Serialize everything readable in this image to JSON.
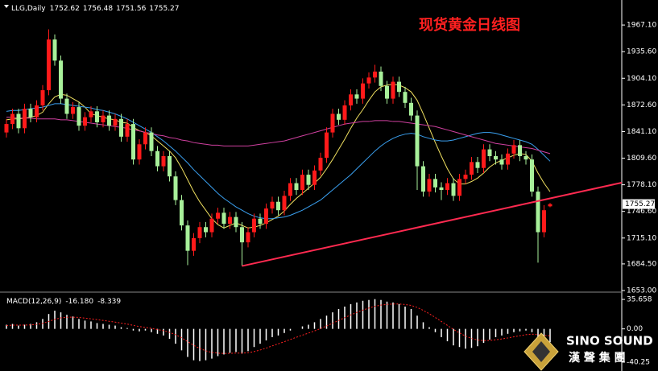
{
  "chart_data": [
    {
      "type": "candlestick",
      "title": "现货黄金日线图",
      "symbol": "LLG,Daily",
      "up_color": "#ff1a1a",
      "down_color": "#a8f09a",
      "open": [
        1840,
        1850,
        1862,
        1845,
        1868,
        1858,
        1872,
        1890,
        1950,
        1925,
        1880,
        1862,
        1870,
        1848,
        1858,
        1865,
        1852,
        1860,
        1848,
        1856,
        1835,
        1850,
        1808,
        1826,
        1840,
        1818,
        1800,
        1812,
        1788,
        1760,
        1730,
        1700,
        1715,
        1728,
        1722,
        1738,
        1745,
        1732,
        1740,
        1728,
        1710,
        1722,
        1738,
        1732,
        1750,
        1758,
        1748,
        1765,
        1780,
        1772,
        1790,
        1778,
        1795,
        1810,
        1840,
        1862,
        1855,
        1872,
        1885,
        1880,
        1898,
        1905,
        1912,
        1895,
        1880,
        1900,
        1888,
        1875,
        1860,
        1800,
        1770,
        1785,
        1775,
        1772,
        1780,
        1765,
        1785,
        1790,
        1805,
        1798,
        1820,
        1812,
        1808,
        1802,
        1815,
        1825,
        1812,
        1808,
        1770,
        1722,
        1752.62
      ],
      "high": [
        1856,
        1868,
        1868,
        1874,
        1874,
        1878,
        1896,
        1962,
        1956,
        1931,
        1886,
        1876,
        1876,
        1864,
        1871,
        1871,
        1866,
        1866,
        1862,
        1862,
        1856,
        1856,
        1832,
        1846,
        1846,
        1824,
        1818,
        1818,
        1794,
        1766,
        1736,
        1721,
        1734,
        1734,
        1744,
        1751,
        1751,
        1746,
        1746,
        1734,
        1728,
        1744,
        1744,
        1756,
        1764,
        1764,
        1771,
        1786,
        1786,
        1796,
        1796,
        1801,
        1816,
        1846,
        1868,
        1868,
        1878,
        1891,
        1891,
        1904,
        1911,
        1920,
        1918,
        1901,
        1906,
        1906,
        1894,
        1881,
        1866,
        1806,
        1791,
        1791,
        1781,
        1786,
        1786,
        1791,
        1796,
        1811,
        1811,
        1826,
        1826,
        1818,
        1814,
        1821,
        1831,
        1831,
        1818,
        1814,
        1776,
        1754,
        1756.48
      ],
      "low": [
        1834,
        1844,
        1839,
        1839,
        1852,
        1852,
        1866,
        1884,
        1919,
        1874,
        1856,
        1856,
        1842,
        1842,
        1852,
        1846,
        1846,
        1842,
        1842,
        1829,
        1829,
        1802,
        1802,
        1820,
        1812,
        1794,
        1794,
        1782,
        1754,
        1724,
        1683,
        1694,
        1709,
        1716,
        1716,
        1732,
        1726,
        1726,
        1722,
        1682,
        1704,
        1716,
        1726,
        1726,
        1744,
        1742,
        1742,
        1759,
        1766,
        1766,
        1772,
        1772,
        1789,
        1804,
        1834,
        1849,
        1849,
        1866,
        1874,
        1874,
        1892,
        1899,
        1889,
        1874,
        1874,
        1882,
        1869,
        1854,
        1772,
        1764,
        1764,
        1769,
        1760,
        1766,
        1759,
        1759,
        1779,
        1784,
        1792,
        1792,
        1806,
        1802,
        1796,
        1796,
        1809,
        1806,
        1802,
        1764,
        1686,
        1716,
        1751.56
      ],
      "close": [
        1850,
        1862,
        1845,
        1868,
        1858,
        1872,
        1890,
        1950,
        1925,
        1880,
        1862,
        1870,
        1848,
        1858,
        1865,
        1852,
        1860,
        1848,
        1856,
        1835,
        1850,
        1808,
        1826,
        1840,
        1818,
        1800,
        1812,
        1788,
        1760,
        1730,
        1700,
        1715,
        1728,
        1722,
        1738,
        1745,
        1732,
        1740,
        1728,
        1710,
        1722,
        1738,
        1732,
        1750,
        1758,
        1748,
        1765,
        1780,
        1772,
        1790,
        1778,
        1795,
        1810,
        1840,
        1862,
        1855,
        1872,
        1885,
        1880,
        1898,
        1905,
        1912,
        1895,
        1880,
        1900,
        1888,
        1875,
        1860,
        1800,
        1770,
        1785,
        1775,
        1772,
        1780,
        1765,
        1785,
        1790,
        1805,
        1798,
        1820,
        1812,
        1808,
        1802,
        1815,
        1825,
        1812,
        1808,
        1770,
        1722,
        1748,
        1755.27
      ],
      "moving_averages": [
        {
          "color": "#f0e060",
          "values": [
            1855,
            1856,
            1856,
            1857,
            1858,
            1860,
            1864,
            1874,
            1882,
            1885,
            1884,
            1880,
            1876,
            1870,
            1862,
            1860,
            1858,
            1856,
            1855,
            1852,
            1851,
            1846,
            1842,
            1840,
            1836,
            1830,
            1824,
            1818,
            1810,
            1798,
            1784,
            1770,
            1758,
            1748,
            1738,
            1731,
            1727,
            1730,
            1733,
            1730,
            1727,
            1728,
            1730,
            1733,
            1737,
            1741,
            1747,
            1755,
            1762,
            1768,
            1774,
            1780,
            1787,
            1797,
            1808,
            1820,
            1832,
            1845,
            1857,
            1867,
            1878,
            1888,
            1894,
            1896,
            1897,
            1896,
            1893,
            1888,
            1878,
            1862,
            1845,
            1828,
            1812,
            1797,
            1785,
            1779,
            1779,
            1782,
            1786,
            1792,
            1799,
            1804,
            1807,
            1810,
            1813,
            1815,
            1814,
            1806,
            1792,
            1780,
            1770
          ]
        },
        {
          "color": "#3aa0f0",
          "values": [
            1865,
            1866,
            1866,
            1867,
            1868,
            1869,
            1870,
            1872,
            1874,
            1874,
            1873,
            1872,
            1871,
            1870,
            1869,
            1867,
            1866,
            1864,
            1862,
            1859,
            1856,
            1852,
            1848,
            1844,
            1840,
            1835,
            1830,
            1824,
            1818,
            1811,
            1804,
            1796,
            1789,
            1782,
            1775,
            1768,
            1762,
            1757,
            1752,
            1748,
            1744,
            1741,
            1739,
            1738,
            1738,
            1739,
            1740,
            1742,
            1745,
            1748,
            1752,
            1756,
            1760,
            1766,
            1772,
            1778,
            1784,
            1790,
            1797,
            1804,
            1811,
            1818,
            1824,
            1829,
            1833,
            1836,
            1838,
            1839,
            1838,
            1835,
            1833,
            1831,
            1830,
            1830,
            1831,
            1833,
            1835,
            1837,
            1839,
            1840,
            1840,
            1839,
            1837,
            1835,
            1833,
            1831,
            1829,
            1826,
            1820,
            1813,
            1806
          ]
        },
        {
          "color": "#d040a0",
          "values": [
            1858,
            1858,
            1857,
            1857,
            1857,
            1856,
            1856,
            1856,
            1856,
            1855,
            1855,
            1854,
            1853,
            1852,
            1851,
            1850,
            1849,
            1848,
            1847,
            1846,
            1845,
            1843,
            1842,
            1840,
            1839,
            1837,
            1836,
            1834,
            1833,
            1831,
            1830,
            1828,
            1827,
            1826,
            1825,
            1825,
            1824,
            1824,
            1824,
            1824,
            1824,
            1825,
            1826,
            1827,
            1828,
            1829,
            1830,
            1832,
            1834,
            1836,
            1838,
            1840,
            1842,
            1844,
            1846,
            1848,
            1850,
            1851,
            1852,
            1853,
            1853,
            1854,
            1854,
            1854,
            1853,
            1853,
            1852,
            1851,
            1850,
            1849,
            1848,
            1847,
            1845,
            1843,
            1841,
            1839,
            1837,
            1835,
            1833,
            1831,
            1829,
            1827,
            1826,
            1825,
            1824,
            1823,
            1822,
            1821,
            1819,
            1817,
            1815
          ]
        }
      ],
      "trend_line": {
        "color": "#ff2a50",
        "points": [
          [
            39,
            1682
          ],
          [
            90,
            1762
          ]
        ]
      },
      "ylim": [
        1653,
        1996.7
      ],
      "yticks": [
        {
          "value": 1967.1,
          "label": "1967.10"
        },
        {
          "value": 1935.6,
          "label": "1935.60"
        },
        {
          "value": 1904.1,
          "label": "1904.10"
        },
        {
          "value": 1872.6,
          "label": "1872.60"
        },
        {
          "value": 1841.1,
          "label": "1841.10"
        },
        {
          "value": 1809.6,
          "label": "1809.60"
        },
        {
          "value": 1778.1,
          "label": "1778.10"
        },
        {
          "value": 1746.6,
          "label": "1746.60"
        },
        {
          "value": 1715.1,
          "label": "1715.10"
        },
        {
          "value": 1684.5,
          "label": "1684.50"
        },
        {
          "value": 1653,
          "label": "1653.00"
        }
      ]
    },
    {
      "type": "macd",
      "title": "MACD(12,26,9)",
      "macd": {
        "color": "#ffffff",
        "last_label": "-16.180",
        "values": [
          5,
          6,
          4,
          5,
          6,
          8,
          12,
          18,
          22,
          20,
          17,
          15,
          12,
          10,
          9,
          7,
          6,
          5,
          4,
          2,
          1,
          -2,
          -3,
          -2,
          -4,
          -6,
          -8,
          -12,
          -18,
          -26,
          -34,
          -38,
          -39,
          -38,
          -36,
          -33,
          -31,
          -29,
          -28,
          -30,
          -27,
          -22,
          -18,
          -14,
          -10,
          -8,
          -5,
          -2,
          0,
          3,
          5,
          8,
          12,
          16,
          20,
          24,
          27,
          30,
          32,
          34,
          35,
          36,
          35,
          33,
          32,
          30,
          27,
          24,
          16,
          8,
          2,
          -4,
          -10,
          -15,
          -20,
          -22,
          -24,
          -23,
          -21,
          -17,
          -13,
          -10,
          -8,
          -6,
          -4,
          -3,
          -2,
          -4,
          -10,
          -14,
          -16.18
        ]
      },
      "signal": {
        "color": "#ff2020",
        "last_label": "-8.339",
        "values": [
          4,
          4.5,
          4.5,
          4.6,
          4.8,
          5.4,
          6.7,
          9,
          11.6,
          13.3,
          14,
          14.2,
          13.8,
          13,
          12.2,
          11.2,
          10.2,
          9.2,
          8.2,
          7,
          5.8,
          4.2,
          2.8,
          1.8,
          0.6,
          -0.8,
          -2.2,
          -4.2,
          -7,
          -10.8,
          -15.4,
          -19.9,
          -23.7,
          -26.6,
          -28.5,
          -29.4,
          -29.7,
          -29.6,
          -29.3,
          -29.4,
          -28.9,
          -27.5,
          -25.6,
          -23.3,
          -20.6,
          -18.1,
          -15.5,
          -12.8,
          -10.2,
          -7.6,
          -5.1,
          -2.5,
          0.4,
          3.5,
          6.8,
          10.2,
          13.6,
          16.9,
          19.9,
          22.7,
          25.2,
          27.3,
          28.8,
          29.6,
          30.1,
          30.1,
          29.5,
          28.4,
          26,
          22.4,
          18.3,
          13.8,
          9,
          4.2,
          -0.6,
          -4.9,
          -8.7,
          -11.6,
          -13.5,
          -14.2,
          -14,
          -13.2,
          -12.2,
          -11,
          -9.6,
          -8.3,
          -7,
          -6.4,
          -7.1,
          -8,
          -8.339
        ]
      },
      "ylim": [
        -51,
        43.5
      ],
      "yticks": [
        35.658,
        {
          "value": 0,
          "label": "0.00"
        },
        -40.25
      ]
    }
  ],
  "logo": {
    "name": "SINO SOUND",
    "subtitle": "漢 聲 集 團"
  }
}
